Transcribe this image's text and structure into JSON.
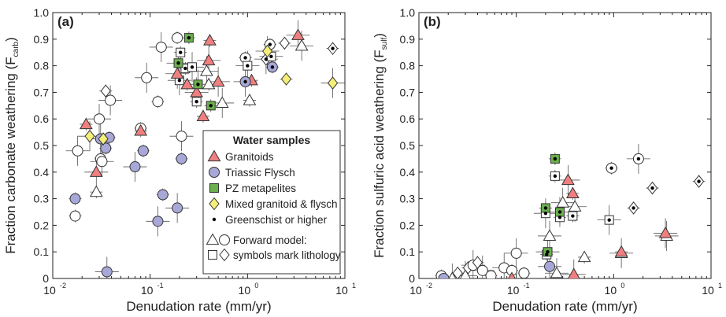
{
  "chart_data": [
    {
      "type": "scatter",
      "panel_label": "(a)",
      "ylabel": "Fraction carbonate weathering (F",
      "ylabel_sub": "carb",
      "ylabel_tail": ")",
      "xlabel": "Denudation rate (mm/yr)",
      "xscale": "log",
      "xlim": [
        0.01,
        10
      ],
      "ylim": [
        0,
        1
      ],
      "x_ticks": [
        {
          "base": "10",
          "exp": "-2"
        },
        {
          "base": "10",
          "exp": "-1"
        },
        {
          "base": "10",
          "exp": "0"
        },
        {
          "base": "10",
          "exp": "1"
        }
      ],
      "y_ticks": [
        "0",
        "0.1",
        "0.2",
        "0.3",
        "0.4",
        "0.5",
        "0.6",
        "0.7",
        "0.8",
        "0.9",
        "1.0"
      ],
      "series": [
        {
          "name": "Granitoids",
          "marker": "triangle",
          "color": "#f08080",
          "points": [
            [
              0.022,
              0.58
            ],
            [
              0.028,
              0.4
            ],
            [
              0.08,
              0.555
            ],
            [
              0.19,
              0.77
            ],
            [
              0.24,
              0.73
            ],
            [
              0.3,
              0.7
            ],
            [
              0.35,
              0.61
            ],
            [
              0.4,
              0.82
            ],
            [
              0.41,
              0.895
            ],
            [
              0.5,
              0.74
            ],
            [
              1.1,
              0.745
            ],
            [
              3.3,
              0.915
            ]
          ]
        },
        {
          "name": "Triassic Flysch",
          "marker": "circle",
          "color": "#a8a8d8",
          "points": [
            [
              0.017,
              0.3
            ],
            [
              0.031,
              0.525
            ],
            [
              0.035,
              0.49
            ],
            [
              0.036,
              0.025
            ],
            [
              0.038,
              0.53
            ],
            [
              0.07,
              0.42
            ],
            [
              0.085,
              0.48
            ],
            [
              0.12,
              0.215
            ],
            [
              0.135,
              0.315
            ],
            [
              0.19,
              0.265
            ],
            [
              0.21,
              0.45
            ],
            [
              0.95,
              0.74
            ],
            [
              1.8,
              0.795
            ]
          ]
        },
        {
          "name": "PZ metapelites",
          "marker": "square",
          "color": "#6ab04c",
          "points": [
            [
              0.195,
              0.81
            ],
            [
              0.25,
              0.905
            ],
            [
              0.31,
              0.73
            ],
            [
              0.42,
              0.65
            ]
          ]
        },
        {
          "name": "Mixed granitoid & flysch",
          "marker": "diamond",
          "color": "#f5ef7a",
          "points": [
            [
              0.024,
              0.535
            ],
            [
              0.033,
              0.525
            ],
            [
              1.6,
              0.855
            ],
            [
              2.5,
              0.75
            ],
            [
              7.5,
              0.735
            ]
          ]
        },
        {
          "name": "Greenschist or higher",
          "marker": "dot",
          "color": "#000000",
          "points": []
        },
        {
          "name": "Forward model: symbols mark lithology",
          "marker": "open",
          "points": [
            {
              "x": 0.017,
              "y": 0.235,
              "m": "circle"
            },
            {
              "x": 0.018,
              "y": 0.48,
              "m": "circle"
            },
            {
              "x": 0.028,
              "y": 0.325,
              "m": "triangle"
            },
            {
              "x": 0.03,
              "y": 0.6,
              "m": "circle"
            },
            {
              "x": 0.031,
              "y": 0.45,
              "m": "circle"
            },
            {
              "x": 0.032,
              "y": 0.44,
              "m": "circle"
            },
            {
              "x": 0.035,
              "y": 0.705,
              "m": "diamond"
            },
            {
              "x": 0.039,
              "y": 0.67,
              "m": "circle"
            },
            {
              "x": 0.08,
              "y": 0.565,
              "m": "circle"
            },
            {
              "x": 0.092,
              "y": 0.755,
              "m": "circle"
            },
            {
              "x": 0.12,
              "y": 0.665,
              "m": "circle"
            },
            {
              "x": 0.13,
              "y": 0.87,
              "m": "circle"
            },
            {
              "x": 0.19,
              "y": 0.905,
              "m": "circle"
            },
            {
              "x": 0.2,
              "y": 0.745,
              "m": "square"
            },
            {
              "x": 0.205,
              "y": 0.85,
              "m": "square"
            },
            {
              "x": 0.21,
              "y": 0.535,
              "m": "circle"
            },
            {
              "x": 0.23,
              "y": 0.79,
              "m": "square"
            },
            {
              "x": 0.27,
              "y": 0.795,
              "m": "square"
            },
            {
              "x": 0.3,
              "y": 0.665,
              "m": "square"
            },
            {
              "x": 0.38,
              "y": 0.78,
              "m": "triangle"
            },
            {
              "x": 0.4,
              "y": 0.73,
              "m": "triangle"
            },
            {
              "x": 0.55,
              "y": 0.66,
              "m": "triangle"
            },
            {
              "x": 0.95,
              "y": 0.83,
              "m": "circle"
            },
            {
              "x": 1.0,
              "y": 0.8,
              "m": "square"
            },
            {
              "x": 1.05,
              "y": 0.67,
              "m": "triangle"
            },
            {
              "x": 1.55,
              "y": 0.825,
              "m": "diamond"
            },
            {
              "x": 1.7,
              "y": 0.88,
              "m": "circle"
            },
            {
              "x": 1.75,
              "y": 0.835,
              "m": "square"
            },
            {
              "x": 2.4,
              "y": 0.885,
              "m": "diamond"
            },
            {
              "x": 3.6,
              "y": 0.875,
              "m": "triangle"
            },
            {
              "x": 7.5,
              "y": 0.865,
              "m": "diamond"
            }
          ]
        }
      ],
      "greenschist_marked": [
        [
          0.195,
          0.81
        ],
        [
          0.25,
          0.905
        ],
        [
          0.31,
          0.73
        ],
        [
          0.42,
          0.65
        ],
        [
          0.95,
          0.74
        ],
        [
          1.8,
          0.795
        ],
        [
          0.2,
          0.745
        ],
        [
          0.205,
          0.85
        ],
        [
          0.23,
          0.79
        ],
        [
          0.27,
          0.795
        ],
        [
          0.3,
          0.665
        ],
        [
          0.95,
          0.83
        ],
        [
          1.0,
          0.8
        ],
        [
          1.55,
          0.825
        ],
        [
          1.7,
          0.88
        ],
        [
          1.75,
          0.835
        ],
        [
          7.5,
          0.865
        ]
      ],
      "legend": {
        "title": "Water samples",
        "placement": "lower-right",
        "entries": [
          {
            "label": "Granitoids",
            "marker": "triangle",
            "color": "#f08080"
          },
          {
            "label": "Triassic Flysch",
            "marker": "circle",
            "color": "#a8a8d8"
          },
          {
            "label": "PZ metapelites",
            "marker": "square",
            "color": "#6ab04c"
          },
          {
            "label": "Mixed granitoid & flysch",
            "marker": "diamond",
            "color": "#f5ef7a"
          },
          {
            "label": "Greenschist or higher",
            "marker": "dot",
            "color": "#000000"
          }
        ],
        "model_label_1": "Forward model:",
        "model_label_2": "symbols mark lithology"
      }
    },
    {
      "type": "scatter",
      "panel_label": "(b)",
      "ylabel": "Fraction sulfuric acid weathering (F",
      "ylabel_sub": "sulf",
      "ylabel_tail": ")",
      "xlabel": "Denudation rate (mm/yr)",
      "xscale": "log",
      "xlim": [
        0.01,
        10
      ],
      "ylim": [
        0,
        1
      ],
      "x_ticks": [
        {
          "base": "10",
          "exp": "-2"
        },
        {
          "base": "10",
          "exp": "-1"
        },
        {
          "base": "10",
          "exp": "0"
        },
        {
          "base": "10",
          "exp": "1"
        }
      ],
      "y_ticks": [
        "0",
        "0.1",
        "0.2",
        "0.3",
        "0.4",
        "0.5",
        "0.6",
        "0.7",
        "0.8",
        "0.9",
        "1.0"
      ],
      "series": [
        {
          "name": "Granitoids",
          "marker": "triangle",
          "color": "#f08080",
          "points": [
            [
              0.09,
              0.0
            ],
            [
              0.34,
              0.37
            ],
            [
              0.38,
              0.32
            ],
            [
              0.39,
              0.015
            ],
            [
              1.2,
              0.1
            ],
            [
              3.4,
              0.17
            ]
          ]
        },
        {
          "name": "Triassic Flysch",
          "marker": "circle",
          "color": "#a8a8d8",
          "points": [
            [
              0.018,
              0.0
            ],
            [
              0.22,
              0.045
            ]
          ]
        },
        {
          "name": "PZ metapelites",
          "marker": "square",
          "color": "#6ab04c",
          "points": [
            [
              0.2,
              0.265
            ],
            [
              0.21,
              0.1
            ],
            [
              0.25,
              0.45
            ],
            [
              0.28,
              0.25
            ]
          ]
        },
        {
          "name": "Forward model: symbols mark lithology",
          "marker": "open",
          "points": [
            {
              "x": 0.017,
              "y": 0.01,
              "m": "circle"
            },
            {
              "x": 0.022,
              "y": 0.0,
              "m": "triangle"
            },
            {
              "x": 0.025,
              "y": 0.02,
              "m": "diamond"
            },
            {
              "x": 0.03,
              "y": 0.01,
              "m": "triangle"
            },
            {
              "x": 0.032,
              "y": 0.04,
              "m": "diamond"
            },
            {
              "x": 0.036,
              "y": 0.05,
              "m": "circle"
            },
            {
              "x": 0.04,
              "y": 0.06,
              "m": "diamond"
            },
            {
              "x": 0.045,
              "y": 0.03,
              "m": "circle"
            },
            {
              "x": 0.055,
              "y": 0.01,
              "m": "circle"
            },
            {
              "x": 0.075,
              "y": 0.04,
              "m": "circle"
            },
            {
              "x": 0.09,
              "y": 0.03,
              "m": "circle"
            },
            {
              "x": 0.1,
              "y": 0.095,
              "m": "circle"
            },
            {
              "x": 0.12,
              "y": 0.02,
              "m": "circle"
            },
            {
              "x": 0.2,
              "y": 0.245,
              "m": "square"
            },
            {
              "x": 0.205,
              "y": 0.09,
              "m": "square"
            },
            {
              "x": 0.22,
              "y": 0.16,
              "m": "triangle"
            },
            {
              "x": 0.25,
              "y": 0.385,
              "m": "square"
            },
            {
              "x": 0.26,
              "y": 0.02,
              "m": "triangle"
            },
            {
              "x": 0.28,
              "y": 0.23,
              "m": "square"
            },
            {
              "x": 0.3,
              "y": 0.285,
              "m": "triangle"
            },
            {
              "x": 0.38,
              "y": 0.235,
              "m": "square"
            },
            {
              "x": 0.4,
              "y": 0.27,
              "m": "triangle"
            },
            {
              "x": 0.5,
              "y": 0.08,
              "m": "triangle"
            },
            {
              "x": 0.9,
              "y": 0.22,
              "m": "square"
            },
            {
              "x": 0.95,
              "y": 0.415,
              "m": "circle"
            },
            {
              "x": 1.2,
              "y": 0.095,
              "m": "triangle"
            },
            {
              "x": 1.6,
              "y": 0.265,
              "m": "diamond"
            },
            {
              "x": 1.8,
              "y": 0.45,
              "m": "circle"
            },
            {
              "x": 2.5,
              "y": 0.34,
              "m": "diamond"
            },
            {
              "x": 3.5,
              "y": 0.16,
              "m": "triangle"
            },
            {
              "x": 7.5,
              "y": 0.365,
              "m": "diamond"
            }
          ]
        }
      ],
      "greenschist_marked": [
        [
          0.2,
          0.265
        ],
        [
          0.21,
          0.1
        ],
        [
          0.25,
          0.45
        ],
        [
          0.28,
          0.25
        ],
        [
          0.2,
          0.245
        ],
        [
          0.205,
          0.09
        ],
        [
          0.25,
          0.385
        ],
        [
          0.28,
          0.23
        ],
        [
          0.38,
          0.235
        ],
        [
          0.9,
          0.22
        ],
        [
          0.95,
          0.415
        ],
        [
          1.6,
          0.265
        ],
        [
          1.8,
          0.45
        ],
        [
          2.5,
          0.34
        ],
        [
          7.5,
          0.365
        ]
      ]
    }
  ]
}
